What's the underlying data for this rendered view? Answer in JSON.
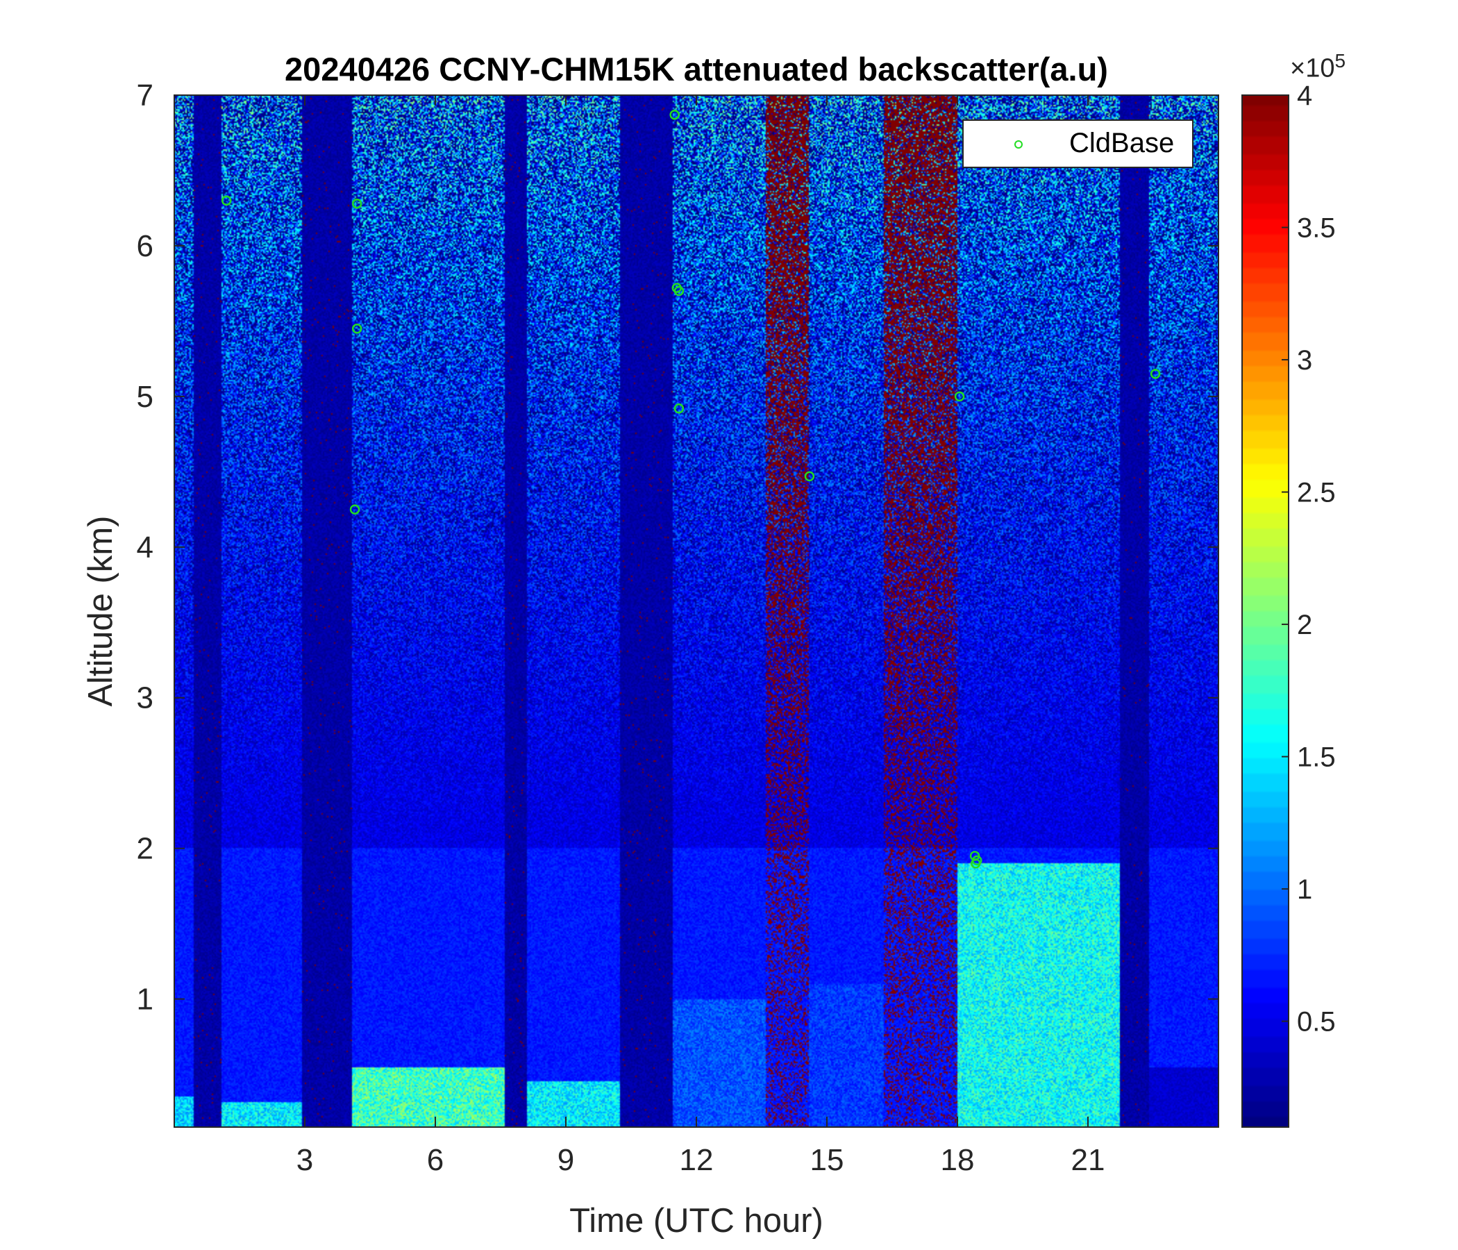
{
  "chart_data": {
    "type": "heatmap",
    "title": "20240426 CCNY-CHM15K attenuated backscatter(a.u)",
    "xlabel": "Time (UTC hour)",
    "ylabel": "Altitude (km)",
    "xlim": [
      0,
      24
    ],
    "ylim": [
      0.15,
      7
    ],
    "xticks": [
      3,
      6,
      9,
      12,
      15,
      18,
      21
    ],
    "yticks": [
      1,
      2,
      3,
      4,
      5,
      6,
      7
    ],
    "colormap": "jet",
    "colorbar": {
      "range": [
        0.1,
        4
      ],
      "ticks": [
        0.5,
        1,
        1.5,
        2,
        2.5,
        3,
        3.5,
        4
      ],
      "multiplier": "×10",
      "exponent": "5"
    },
    "grid": false,
    "legend": {
      "position": "top-right",
      "entries": [
        "CldBase"
      ]
    },
    "no_data_bands": [
      [
        0.45,
        1.1
      ],
      [
        2.95,
        4.1
      ],
      [
        7.6,
        8.1
      ],
      [
        10.25,
        11.45
      ],
      [
        21.75,
        22.4
      ]
    ],
    "high_noise_bands": [
      [
        13.6,
        14.6
      ],
      [
        16.3,
        18.0
      ]
    ],
    "boundary_layer": [
      {
        "x": [
          0,
          0.45
        ],
        "top": 0.35,
        "value": 1.4
      },
      {
        "x": [
          1.1,
          2.95
        ],
        "top": 0.32,
        "value": 1.5
      },
      {
        "x": [
          4.1,
          7.6
        ],
        "top": 0.55,
        "value": 1.8
      },
      {
        "x": [
          8.1,
          10.25
        ],
        "top": 0.45,
        "value": 1.5
      },
      {
        "x": [
          11.45,
          13.6
        ],
        "top": 1.0,
        "value": 0.9
      },
      {
        "x": [
          14.6,
          16.3
        ],
        "top": 1.1,
        "value": 0.8
      },
      {
        "x": [
          18.0,
          21.75
        ],
        "top": 1.9,
        "value": 1.6
      },
      {
        "x": [
          22.4,
          24.0
        ],
        "top": 0.55,
        "value": 0.4
      }
    ],
    "series": [
      {
        "name": "CldBase",
        "marker": "circle",
        "color": "#22dd22",
        "points": [
          {
            "x": 1.2,
            "y": 6.3
          },
          {
            "x": 4.2,
            "y": 6.28
          },
          {
            "x": 4.2,
            "y": 5.45
          },
          {
            "x": 4.15,
            "y": 4.25
          },
          {
            "x": 11.5,
            "y": 6.87
          },
          {
            "x": 11.55,
            "y": 5.72
          },
          {
            "x": 11.6,
            "y": 5.7
          },
          {
            "x": 11.6,
            "y": 4.92
          },
          {
            "x": 14.6,
            "y": 4.47
          },
          {
            "x": 18.05,
            "y": 5.0
          },
          {
            "x": 18.4,
            "y": 1.95
          },
          {
            "x": 18.45,
            "y": 1.92
          },
          {
            "x": 18.42,
            "y": 1.9
          },
          {
            "x": 22.55,
            "y": 5.15
          }
        ]
      }
    ]
  }
}
